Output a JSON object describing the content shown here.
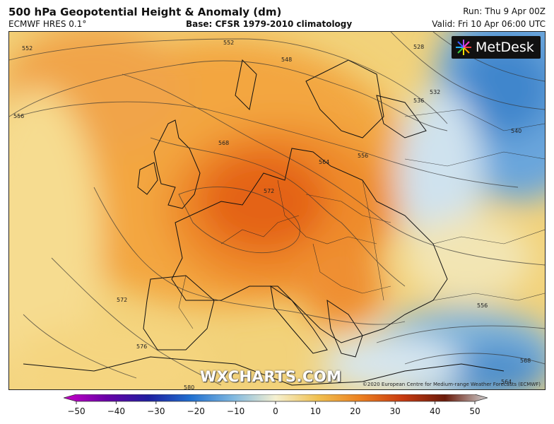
{
  "header": {
    "title": "500 hPa Geopotential Height & Anomaly (dm)",
    "model": "ECMWF HRES 0.1°",
    "base": "Base: CFSR 1979-2010 climatology",
    "run": "Run: Thu 9 Apr 00Z",
    "valid": "Valid: Fri 10 Apr 06:00 UTC"
  },
  "logo": {
    "text": "MetDesk",
    "icon": "metdesk-starburst-icon"
  },
  "watermark": "WXCHARTS.COM",
  "copyright": "©2020 European Centre for Medium-range Weather Forecasts (ECMWF)",
  "contour_labels": [
    "552",
    "556",
    "548",
    "552",
    "528",
    "532",
    "536",
    "540",
    "556",
    "564",
    "568",
    "572",
    "572",
    "576",
    "580",
    "556",
    "564",
    "568"
  ],
  "colorbar": {
    "ticks": [
      "−50",
      "−40",
      "−30",
      "−20",
      "−10",
      "0",
      "10",
      "20",
      "30",
      "40",
      "50"
    ],
    "colors": [
      "#c800c8",
      "#6a00a8",
      "#1e1ea0",
      "#1f6fd0",
      "#7fb8e0",
      "#f5f0d0",
      "#f0c050",
      "#ec8020",
      "#c83a10",
      "#6a1a0a",
      "#d0d0d0"
    ]
  },
  "colors": {
    "map_orange": "#f4a040",
    "map_red": "#e05a18",
    "map_blue": "#4a90d0",
    "map_pale": "#f0e6c0"
  }
}
